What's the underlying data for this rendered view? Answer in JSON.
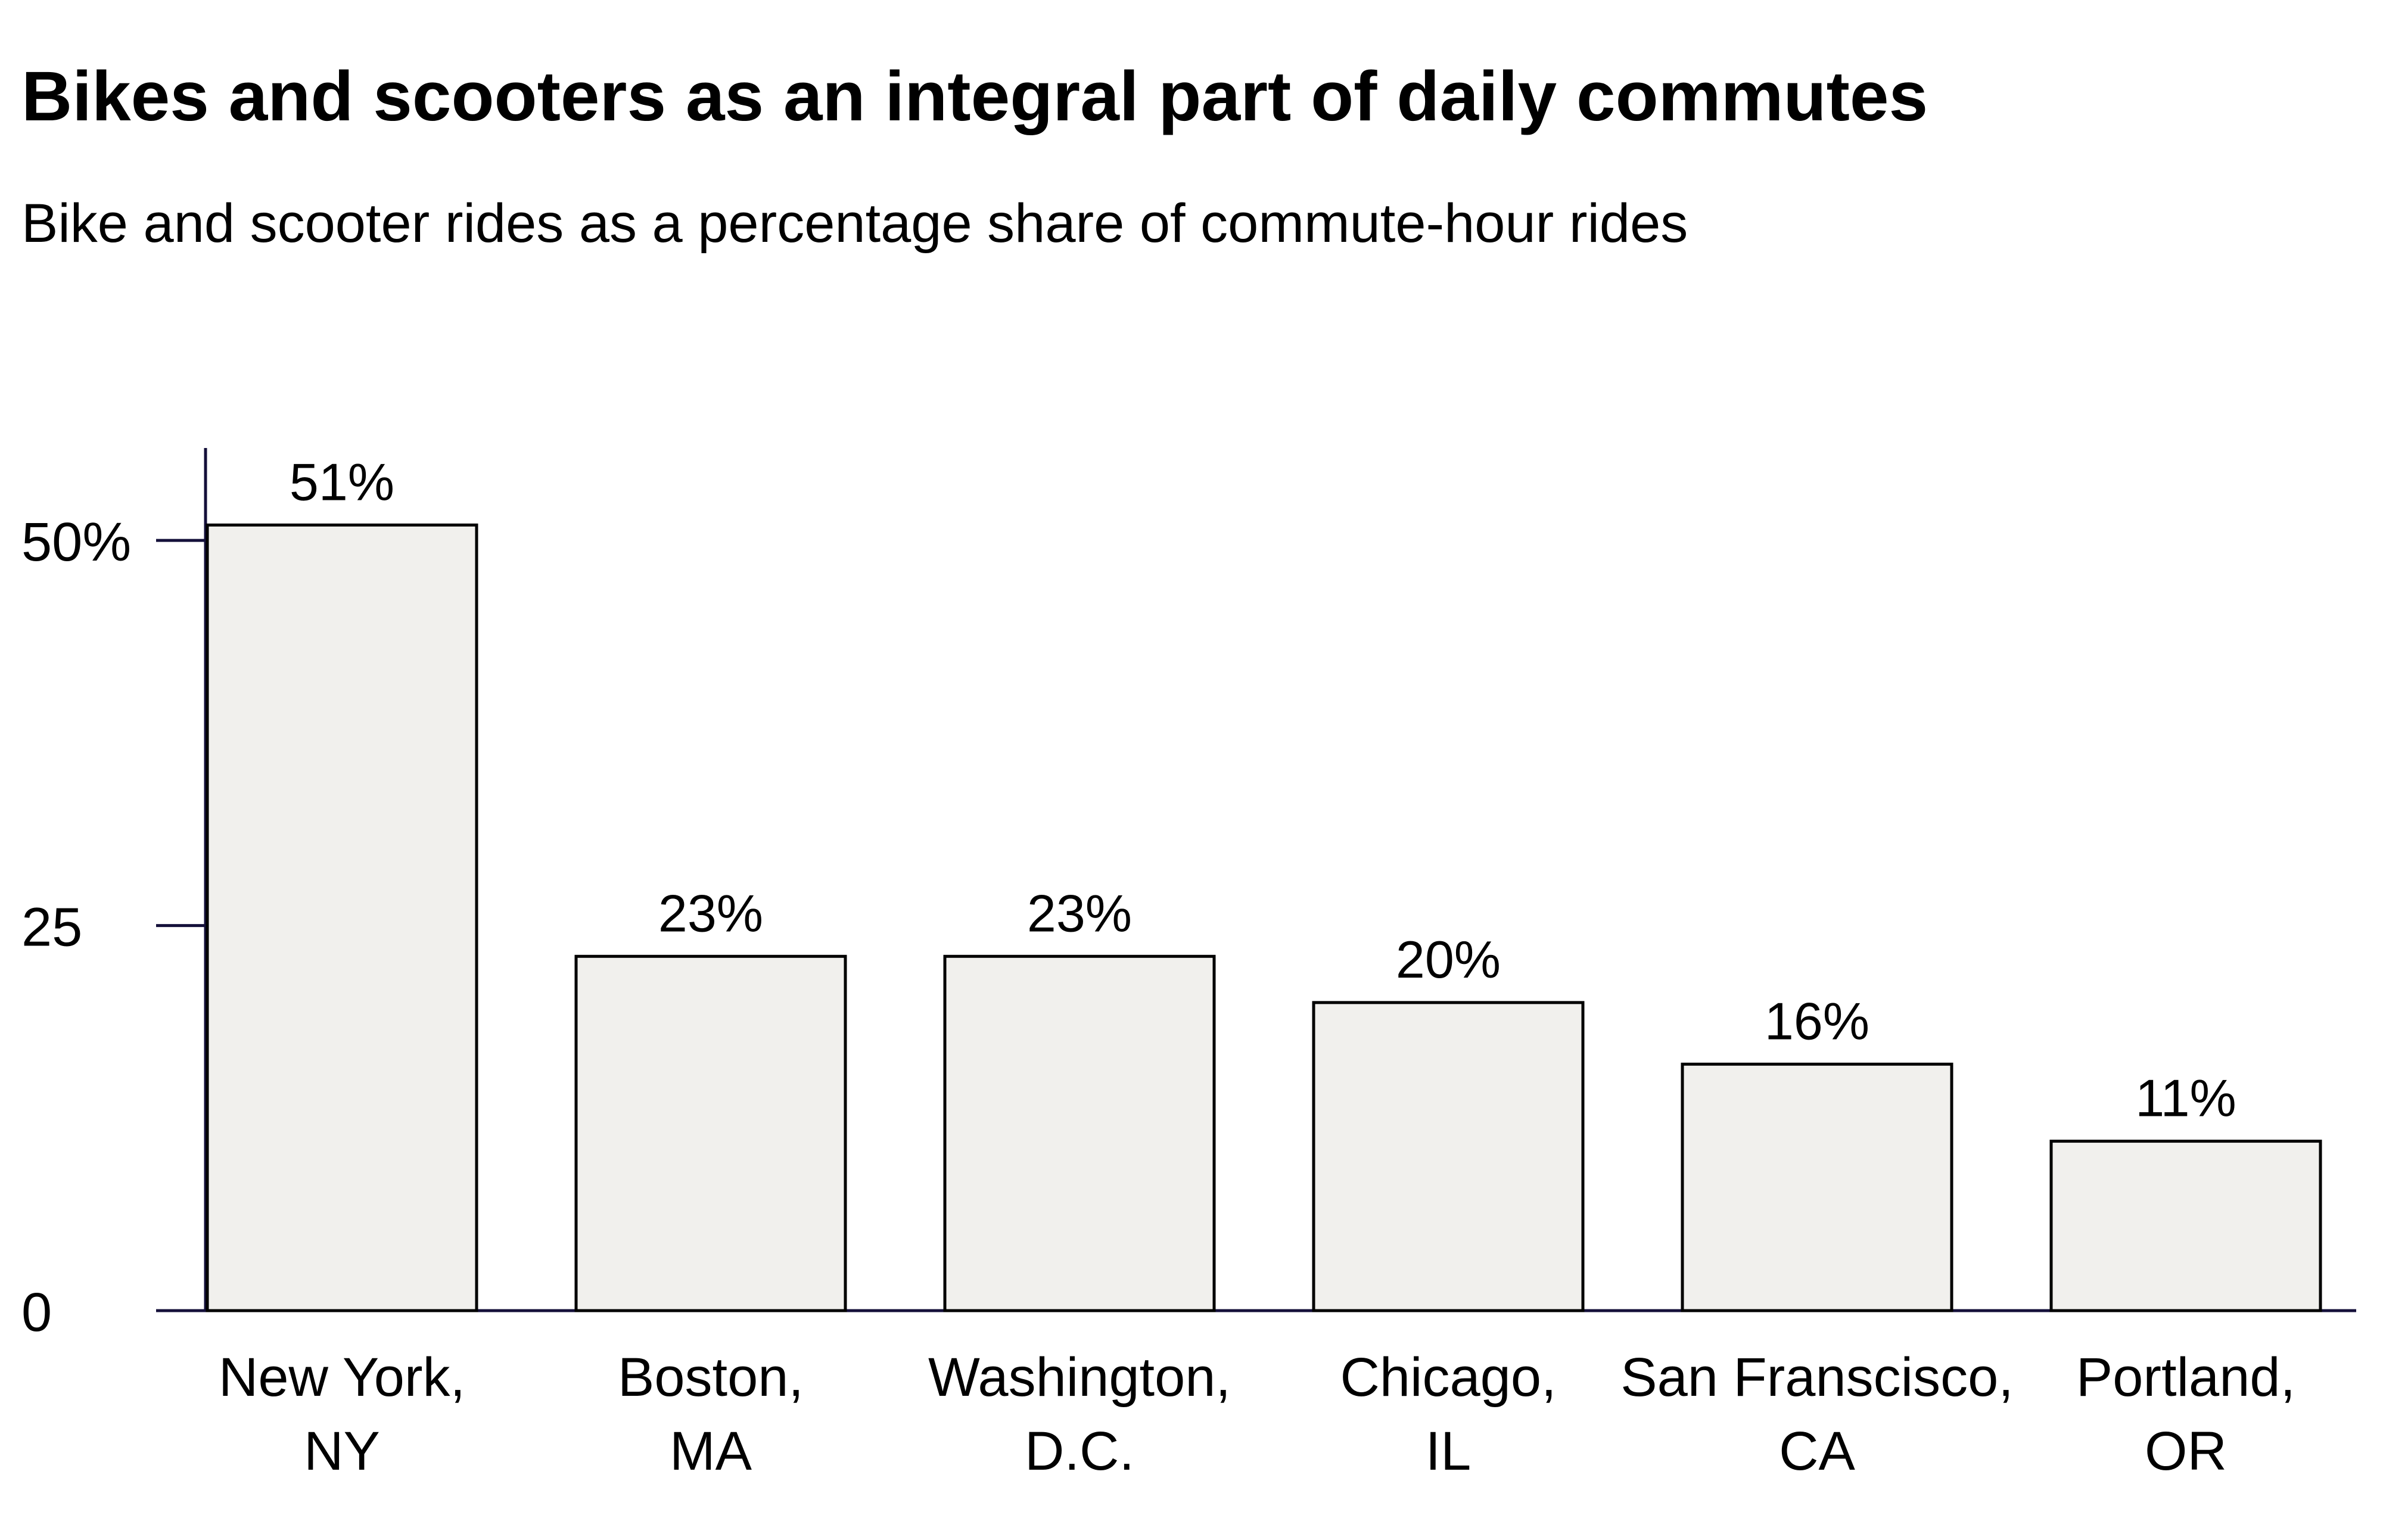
{
  "chart_data": {
    "type": "bar",
    "title": "Bikes and scooters as an integral part of daily commutes",
    "subtitle": "Bike and scooter rides as a percentage share of commute-hour rides",
    "xlabel": "",
    "ylabel": "",
    "categories": [
      [
        "New York,",
        "NY"
      ],
      [
        "Boston,",
        "MA"
      ],
      [
        "Washington,",
        "D.C."
      ],
      [
        "Chicago,",
        "IL"
      ],
      [
        "San Franscisco,",
        "CA"
      ],
      [
        "Portland,",
        "OR"
      ]
    ],
    "values": [
      51,
      23,
      23,
      20,
      16,
      11
    ],
    "value_labels": [
      "51%",
      "23%",
      "23%",
      "20%",
      "16%",
      "11%"
    ],
    "yticks": [
      {
        "value": 0,
        "label": "0"
      },
      {
        "value": 25,
        "label": "25"
      },
      {
        "value": 50,
        "label": "50%"
      }
    ],
    "ylim": [
      0,
      56
    ],
    "grid": false,
    "legend": "none",
    "colors": {
      "bar_fill": "#f1f0ed",
      "bar_stroke": "#000000",
      "axis": "#14103a",
      "text": "#000000"
    }
  }
}
